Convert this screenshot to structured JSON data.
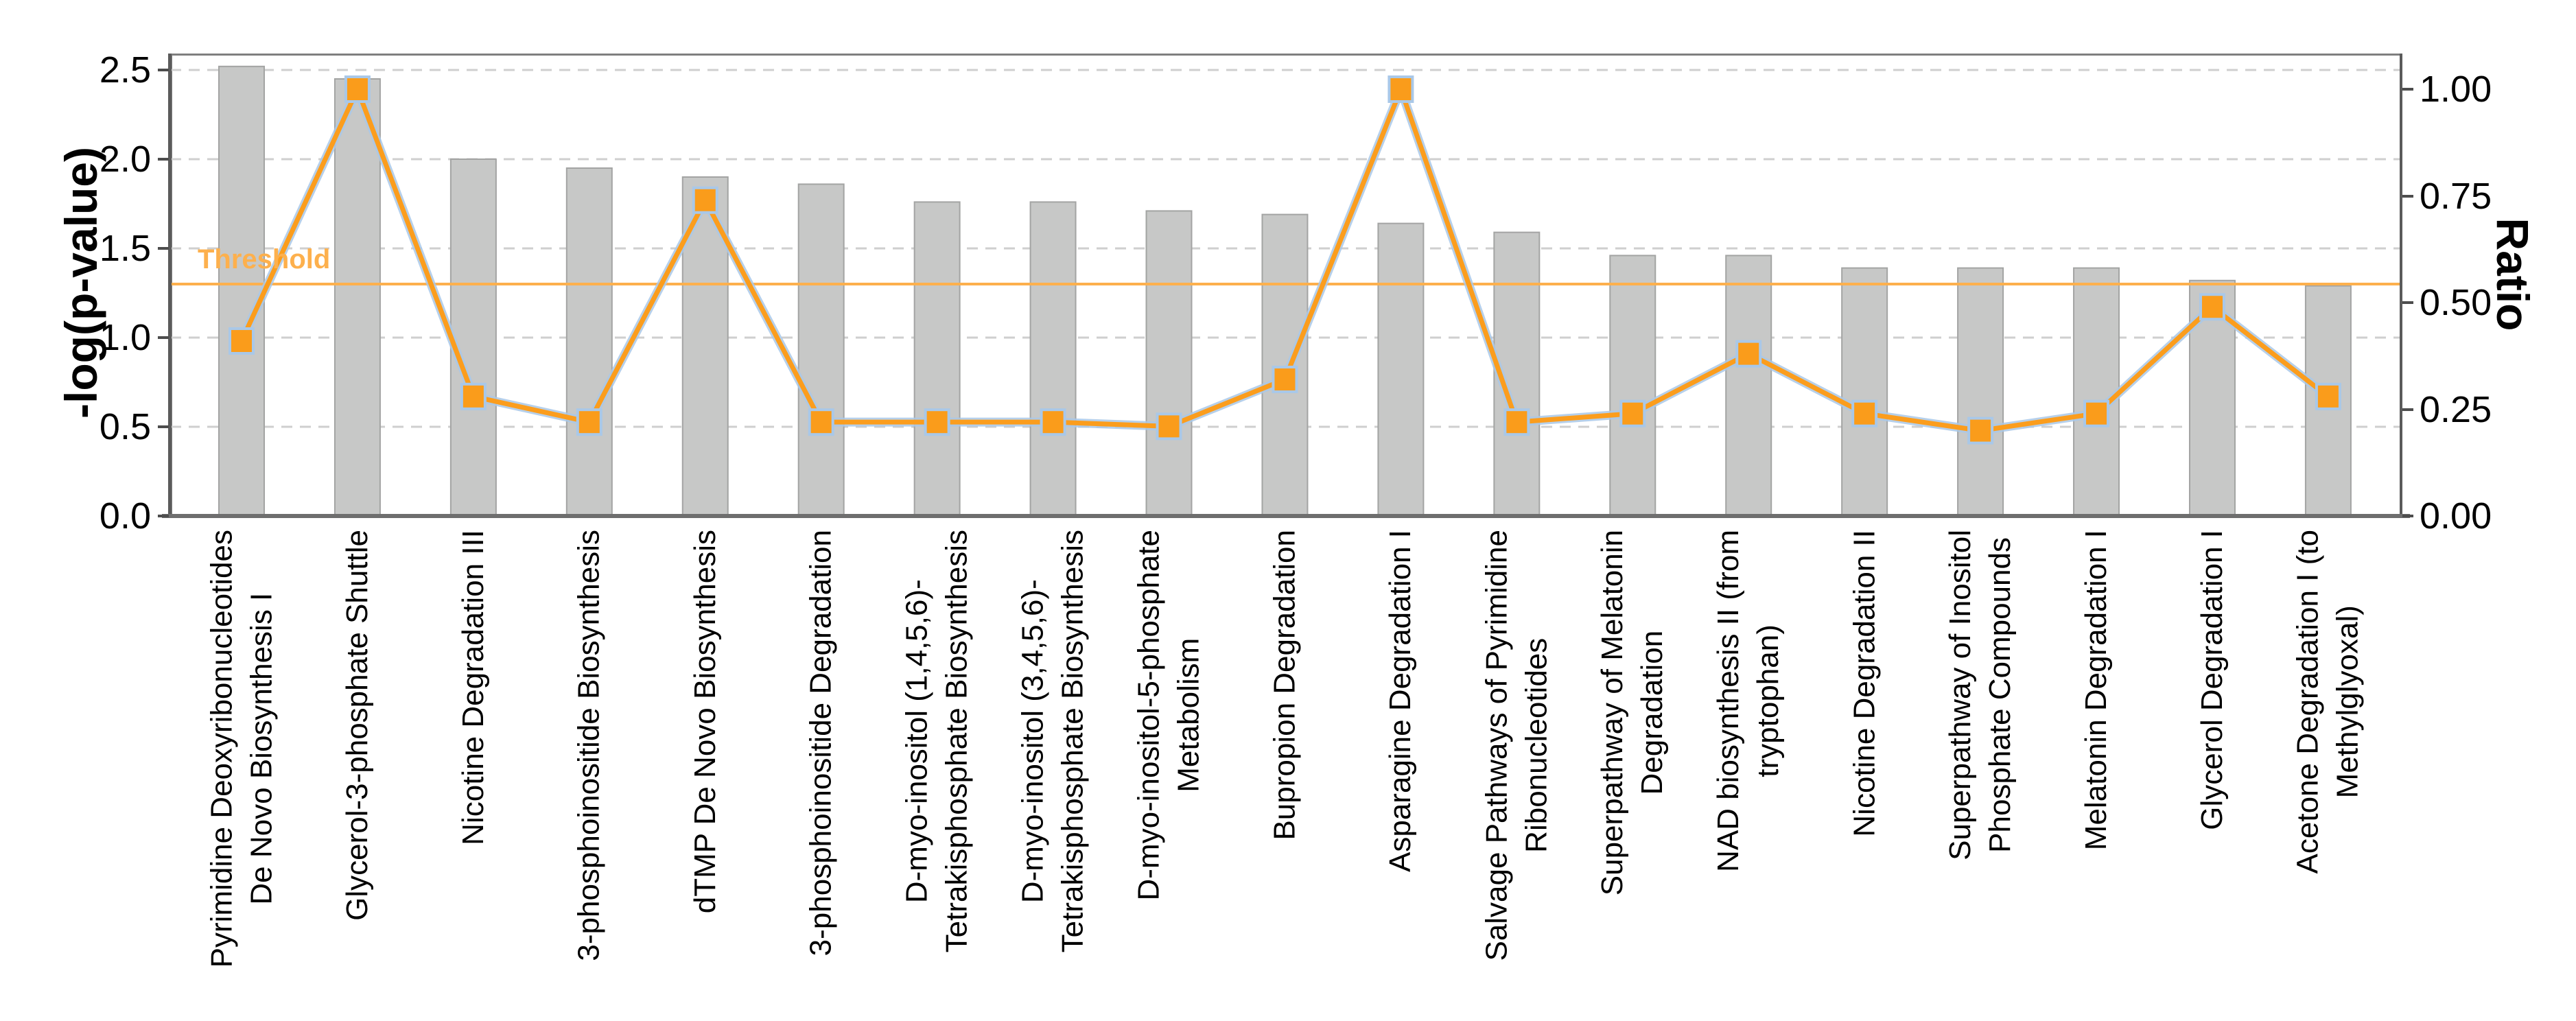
{
  "chart_data": {
    "type": "bar+line-dual-axis",
    "title": "",
    "categories_lines": [
      [
        "Pyrimidine Deoxyribonucleotides",
        "De Novo Biosynthesis I"
      ],
      [
        "Glycerol-3-phosphate Shuttle"
      ],
      [
        "Nicotine Degradation III"
      ],
      [
        "3-phosphoinositide Biosynthesis"
      ],
      [
        "dTMP De Novo Biosynthesis"
      ],
      [
        "3-phosphoinositide Degradation"
      ],
      [
        "D-myo-inositol (1,4,5,6)-",
        "Tetrakisphosphate Biosynthesis"
      ],
      [
        "D-myo-inositol (3,4,5,6)-",
        "Tetrakisphosphate Biosynthesis"
      ],
      [
        "D-myo-inositol-5-phosphate",
        "Metabolism"
      ],
      [
        "Bupropion Degradation"
      ],
      [
        "Asparagine Degradation I"
      ],
      [
        "Salvage Pathways of Pyrimidine",
        "Ribonucleotides"
      ],
      [
        "Superpathway of Melatonin",
        "Degradation"
      ],
      [
        "NAD biosynthesis II (from",
        "tryptophan)"
      ],
      [
        "Nicotine Degradation II"
      ],
      [
        "Superpathway of Inositol",
        "Phosphate Compounds"
      ],
      [
        "Melatonin Degradation I"
      ],
      [
        "Glycerol Degradation I"
      ],
      [
        "Acetone Degradation I (to",
        "Methylglyoxal)"
      ]
    ],
    "series": [
      {
        "name": "-log(p-value)",
        "type": "bar",
        "axis": "left",
        "values": [
          2.52,
          2.45,
          2.0,
          1.95,
          1.9,
          1.86,
          1.76,
          1.76,
          1.71,
          1.69,
          1.64,
          1.59,
          1.46,
          1.46,
          1.39,
          1.39,
          1.39,
          1.32,
          1.29
        ]
      },
      {
        "name": "Ratio",
        "type": "line",
        "axis": "right",
        "values": [
          0.41,
          1.0,
          0.28,
          0.22,
          0.74,
          0.22,
          0.22,
          0.22,
          0.21,
          0.32,
          1.0,
          0.22,
          0.24,
          0.38,
          0.24,
          0.2,
          0.24,
          0.49,
          0.28
        ]
      }
    ],
    "left_axis": {
      "title": "-log(p-value)",
      "tick_labels": [
        "0.0",
        "0.5",
        "1.0",
        "1.5",
        "2.0",
        "2.5"
      ],
      "tick_values": [
        0,
        0.5,
        1.0,
        1.5,
        2.0,
        2.5
      ],
      "range": [
        0,
        2.59
      ]
    },
    "right_axis": {
      "title": "Ratio",
      "tick_labels": [
        "0.00",
        "0.25",
        "0.50",
        "0.75",
        "1.00"
      ],
      "tick_values": [
        0,
        0.25,
        0.5,
        0.75,
        1.0
      ],
      "range": [
        0,
        1.08
      ]
    },
    "threshold": {
      "label": "Threshold",
      "value_on_left_axis": 1.3
    },
    "grid": "horizontal-dashed",
    "legend_position": "none",
    "colors": {
      "bar_fill": "#c7c8c7",
      "bar_border": "#a3a4a3",
      "line_orange": "#fb9d1d",
      "marker_fill": "#fa9c1b",
      "marker_halo": "#a9c8e8",
      "threshold_orange": "#fdb04d",
      "grid_gray": "#cfcfcf",
      "text_black": "#000000"
    }
  }
}
